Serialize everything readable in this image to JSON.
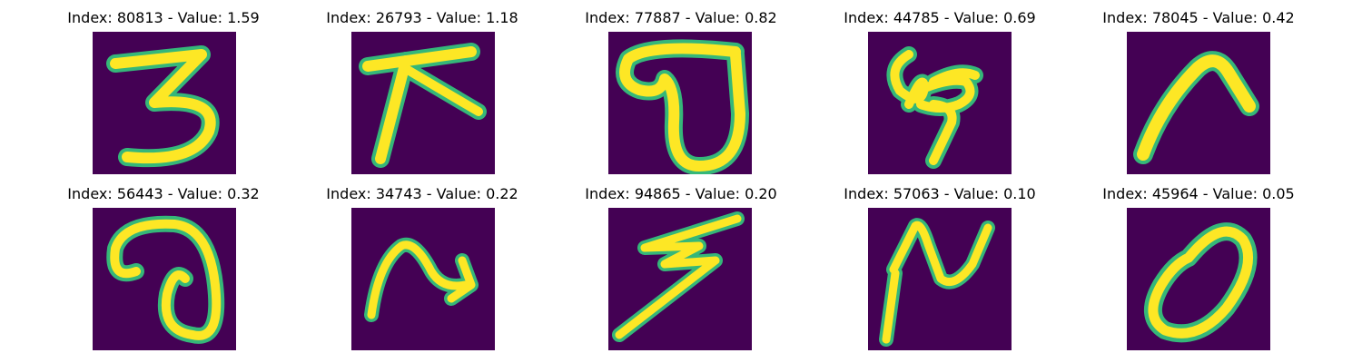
{
  "figure": {
    "background": "#ffffff",
    "colormap": "viridis",
    "image_background": "#440154",
    "panels": [
      {
        "title": "Index: 80813 - Value: 1.59",
        "glyph": "digit-three"
      },
      {
        "title": "Index: 26793 - Value: 1.18",
        "glyph": "cross-strokes"
      },
      {
        "title": "Index: 77887 - Value: 0.82",
        "glyph": "loop-oval"
      },
      {
        "title": "Index: 44785 - Value: 0.69",
        "glyph": "looped-scribble"
      },
      {
        "title": "Index: 78045 - Value: 0.42",
        "glyph": "arch-stroke"
      },
      {
        "title": "Index: 56443 - Value: 0.32",
        "glyph": "spiral-loop"
      },
      {
        "title": "Index: 34743 - Value: 0.22",
        "glyph": "wave-arrow"
      },
      {
        "title": "Index: 94865 - Value: 0.20",
        "glyph": "zigzag-lightning"
      },
      {
        "title": "Index: 57063 - Value: 0.10",
        "glyph": "hook-stroke"
      },
      {
        "title": "Index: 45964 - Value: 0.05",
        "glyph": "digit-zero"
      }
    ]
  }
}
